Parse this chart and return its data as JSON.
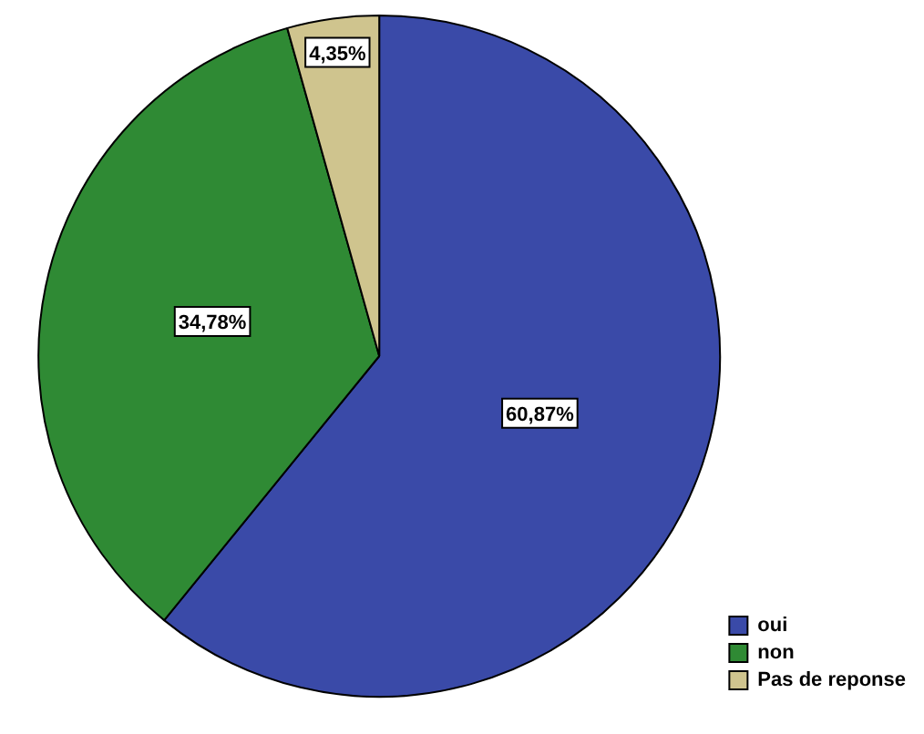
{
  "chart_data": {
    "type": "pie",
    "categories": [
      "oui",
      "non",
      "Pas de reponse"
    ],
    "values": [
      60.87,
      34.78,
      4.35
    ],
    "colors": [
      "#3a4aa8",
      "#2f8a34",
      "#cfc48e"
    ],
    "value_labels": [
      "60,87%",
      "34,78%",
      "4,35%"
    ],
    "legend": "bottom right"
  }
}
